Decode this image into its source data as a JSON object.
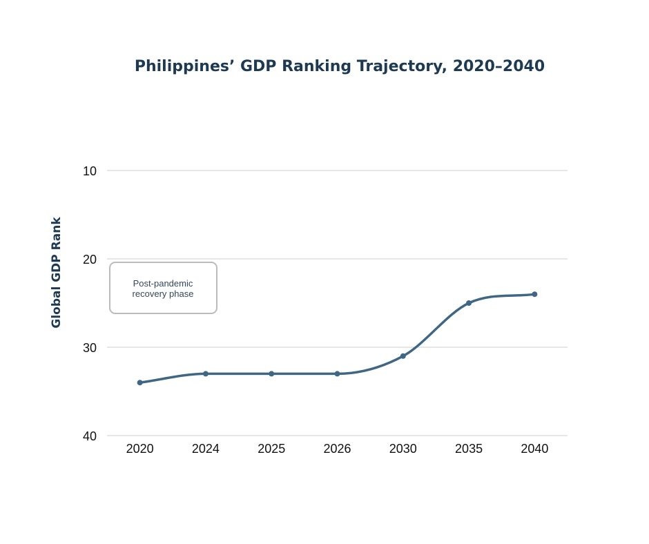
{
  "chart_data": {
    "type": "line",
    "title": "Philippines’ GDP Ranking Trajectory, 2020–2040",
    "xlabel": "",
    "ylabel": "Global GDP Rank",
    "categories": [
      "2020",
      "2024",
      "2025",
      "2026",
      "2030",
      "2035",
      "2040"
    ],
    "values": [
      34,
      33,
      33,
      33,
      31,
      25,
      24
    ],
    "ylim": [
      10,
      40
    ],
    "y_inverted": true,
    "yticks": [
      10,
      20,
      30,
      40
    ],
    "grid": true,
    "smooth": true,
    "line_color": "#3f6685",
    "annotation": {
      "line1": "Post-pandemic",
      "line2": "recovery phase"
    }
  }
}
